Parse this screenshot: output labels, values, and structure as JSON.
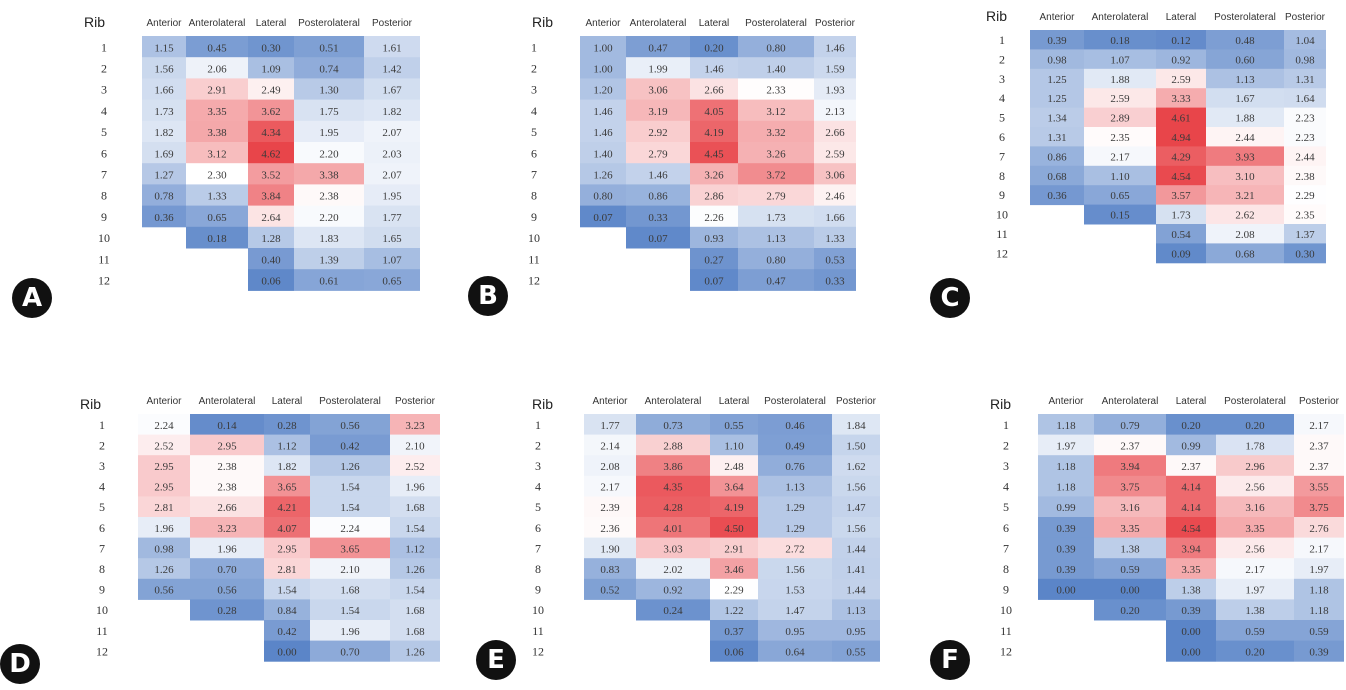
{
  "color_scale": {
    "low": "#5b85c8",
    "mid": "#ffffff",
    "high": "#e8454a",
    "min": 0,
    "max": 4.6
  },
  "chart_data": [
    {
      "type": "heatmap",
      "label": "A",
      "row_title": "Rib",
      "columns": [
        "Anterior",
        "Anterolateral",
        "Lateral",
        "Posterolateral",
        "Posterior"
      ],
      "rows": [
        "1",
        "2",
        "3",
        "4",
        "5",
        "6",
        "7",
        "8",
        "9",
        "10",
        "11",
        "12"
      ],
      "values": [
        [
          1.15,
          0.45,
          0.3,
          0.51,
          1.61
        ],
        [
          1.56,
          2.06,
          1.09,
          0.74,
          1.42
        ],
        [
          1.66,
          2.91,
          2.49,
          1.3,
          1.67
        ],
        [
          1.73,
          3.35,
          3.62,
          1.75,
          1.82
        ],
        [
          1.82,
          3.38,
          4.34,
          1.95,
          2.07
        ],
        [
          1.69,
          3.12,
          4.62,
          2.2,
          2.03
        ],
        [
          1.27,
          2.3,
          3.52,
          3.38,
          2.07
        ],
        [
          0.78,
          1.33,
          3.84,
          2.38,
          1.95
        ],
        [
          0.36,
          0.65,
          2.64,
          2.2,
          1.77
        ],
        [
          null,
          0.18,
          1.28,
          1.83,
          1.65
        ],
        [
          null,
          null,
          0.4,
          1.39,
          1.07
        ],
        [
          null,
          null,
          0.06,
          0.61,
          0.65
        ]
      ]
    },
    {
      "type": "heatmap",
      "label": "B",
      "row_title": "Rib",
      "columns": [
        "Anterior",
        "Anterolateral",
        "Lateral",
        "Posterolateral",
        "Posterior"
      ],
      "rows": [
        "1",
        "2",
        "3",
        "4",
        "5",
        "6",
        "7",
        "8",
        "9",
        "10",
        "11",
        "12"
      ],
      "values": [
        [
          1.0,
          0.47,
          0.2,
          0.8,
          1.46
        ],
        [
          1.0,
          1.99,
          1.46,
          1.4,
          1.59
        ],
        [
          1.2,
          3.06,
          2.66,
          2.33,
          1.93
        ],
        [
          1.46,
          3.19,
          4.05,
          3.12,
          2.13
        ],
        [
          1.46,
          2.92,
          4.19,
          3.32,
          2.66
        ],
        [
          1.4,
          2.79,
          4.45,
          3.26,
          2.59
        ],
        [
          1.26,
          1.46,
          3.26,
          3.72,
          3.06
        ],
        [
          0.8,
          0.86,
          2.86,
          2.79,
          2.46
        ],
        [
          0.07,
          0.33,
          2.26,
          1.73,
          1.66
        ],
        [
          null,
          0.07,
          0.93,
          1.13,
          1.33
        ],
        [
          null,
          null,
          0.27,
          0.8,
          0.53
        ],
        [
          null,
          null,
          0.07,
          0.47,
          0.33
        ]
      ]
    },
    {
      "type": "heatmap",
      "label": "C",
      "row_title": "Rib",
      "columns": [
        "Anterior",
        "Anterolateral",
        "Lateral",
        "Posterolateral",
        "Posterior"
      ],
      "rows": [
        "1",
        "2",
        "3",
        "4",
        "5",
        "6",
        "7",
        "8",
        "9",
        "10",
        "11",
        "12"
      ],
      "values": [
        [
          0.39,
          0.18,
          0.12,
          0.48,
          1.04
        ],
        [
          0.98,
          1.07,
          0.92,
          0.6,
          0.98
        ],
        [
          1.25,
          1.88,
          2.59,
          1.13,
          1.31
        ],
        [
          1.25,
          2.59,
          3.33,
          1.67,
          1.64
        ],
        [
          1.34,
          2.89,
          4.61,
          1.88,
          2.23
        ],
        [
          1.31,
          2.35,
          4.94,
          2.44,
          2.23
        ],
        [
          0.86,
          2.17,
          4.29,
          3.93,
          2.44
        ],
        [
          0.68,
          1.1,
          4.54,
          3.1,
          2.38
        ],
        [
          0.36,
          0.65,
          3.57,
          3.21,
          2.29
        ],
        [
          null,
          0.15,
          1.73,
          2.62,
          2.35
        ],
        [
          null,
          null,
          0.54,
          2.08,
          1.37
        ],
        [
          null,
          null,
          0.09,
          0.68,
          0.3
        ]
      ]
    },
    {
      "type": "heatmap",
      "label": "D",
      "row_title": "Rib",
      "columns": [
        "Anterior",
        "Anterolateral",
        "Lateral",
        "Posterolateral",
        "Posterior"
      ],
      "rows": [
        "1",
        "2",
        "3",
        "4",
        "5",
        "6",
        "7",
        "8",
        "9",
        "10",
        "11",
        "12"
      ],
      "values": [
        [
          2.24,
          0.14,
          0.28,
          0.56,
          3.23
        ],
        [
          2.52,
          2.95,
          1.12,
          0.42,
          2.1
        ],
        [
          2.95,
          2.38,
          1.82,
          1.26,
          2.52
        ],
        [
          2.95,
          2.38,
          3.65,
          1.54,
          1.96
        ],
        [
          2.81,
          2.66,
          4.21,
          1.54,
          1.68
        ],
        [
          1.96,
          3.23,
          4.07,
          2.24,
          1.54
        ],
        [
          0.98,
          1.96,
          2.95,
          3.65,
          1.12
        ],
        [
          1.26,
          0.7,
          2.81,
          2.1,
          1.26
        ],
        [
          0.56,
          0.56,
          1.54,
          1.68,
          1.54
        ],
        [
          null,
          0.28,
          0.84,
          1.54,
          1.68
        ],
        [
          null,
          null,
          0.42,
          1.96,
          1.68
        ],
        [
          null,
          null,
          0.0,
          0.7,
          1.26
        ]
      ]
    },
    {
      "type": "heatmap",
      "label": "E",
      "row_title": "Rib",
      "columns": [
        "Anterior",
        "Anterolateral",
        "Lateral",
        "Posterolateral",
        "Posterior"
      ],
      "rows": [
        "1",
        "2",
        "3",
        "4",
        "5",
        "6",
        "7",
        "8",
        "9",
        "10",
        "11",
        "12"
      ],
      "values": [
        [
          1.77,
          0.73,
          0.55,
          0.46,
          1.84
        ],
        [
          2.14,
          2.88,
          1.1,
          0.49,
          1.5
        ],
        [
          2.08,
          3.86,
          2.48,
          0.76,
          1.62
        ],
        [
          2.17,
          4.35,
          3.64,
          1.13,
          1.56
        ],
        [
          2.39,
          4.28,
          4.19,
          1.29,
          1.47
        ],
        [
          2.36,
          4.01,
          4.5,
          1.29,
          1.56
        ],
        [
          1.9,
          3.03,
          2.91,
          2.72,
          1.44
        ],
        [
          0.83,
          2.02,
          3.46,
          1.56,
          1.41
        ],
        [
          0.52,
          0.92,
          2.29,
          1.53,
          1.44
        ],
        [
          null,
          0.24,
          1.22,
          1.47,
          1.13
        ],
        [
          null,
          null,
          0.37,
          0.95,
          0.95
        ],
        [
          null,
          null,
          0.06,
          0.64,
          0.55
        ]
      ]
    },
    {
      "type": "heatmap",
      "label": "F",
      "row_title": "Rib",
      "columns": [
        "Anterior",
        "Anterolateral",
        "Lateral",
        "Posterolateral",
        "Posterior"
      ],
      "rows": [
        "1",
        "2",
        "3",
        "4",
        "5",
        "6",
        "7",
        "8",
        "9",
        "10",
        "11",
        "12"
      ],
      "values": [
        [
          1.18,
          0.79,
          0.2,
          0.2,
          2.17
        ],
        [
          1.97,
          2.37,
          0.99,
          1.78,
          2.37
        ],
        [
          1.18,
          3.94,
          2.37,
          2.96,
          2.37
        ],
        [
          1.18,
          3.75,
          4.14,
          2.56,
          3.55
        ],
        [
          0.99,
          3.16,
          4.14,
          3.16,
          3.75
        ],
        [
          0.39,
          3.35,
          4.54,
          3.35,
          2.76
        ],
        [
          0.39,
          1.38,
          3.94,
          2.56,
          2.17
        ],
        [
          0.39,
          0.59,
          3.35,
          2.17,
          1.97
        ],
        [
          0.0,
          0.0,
          1.38,
          1.97,
          1.18
        ],
        [
          null,
          0.2,
          0.39,
          1.38,
          1.18
        ],
        [
          null,
          null,
          0.0,
          0.59,
          0.59
        ],
        [
          null,
          null,
          0.0,
          0.2,
          0.39
        ]
      ]
    }
  ]
}
